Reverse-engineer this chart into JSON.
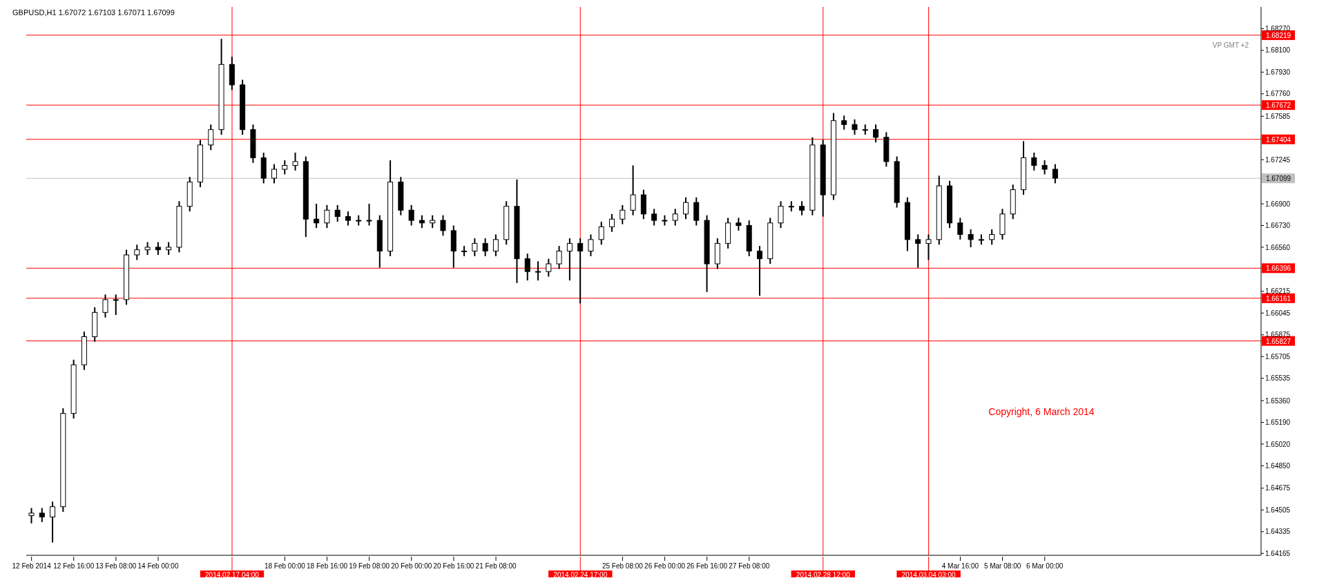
{
  "chart_data": {
    "type": "candlestick",
    "title": "GBPUSD,H1  1.67072 1.67103 1.67071 1.67099",
    "annotations": [
      "VP GMT +2",
      "Copyright, 6 March 2014"
    ],
    "categories": [
      "12 Feb 2014",
      null,
      null,
      null,
      "12 Feb 16:00",
      null,
      null,
      null,
      "13 Feb 08:00",
      null,
      null,
      null,
      "14 Feb 00:00",
      null,
      null,
      null,
      null,
      null,
      null,
      "2014.02.17 04:00",
      null,
      null,
      null,
      null,
      "18 Feb 00:00",
      null,
      null,
      null,
      "18 Feb 16:00",
      null,
      null,
      null,
      "19 Feb 08:00",
      null,
      null,
      null,
      "20 Feb 00:00",
      null,
      null,
      null,
      "20 Feb 16:00",
      null,
      null,
      null,
      "21 Feb 08:00",
      null,
      null,
      null,
      null,
      null,
      null,
      null,
      "2014.02.24 17:00",
      null,
      null,
      null,
      "25 Feb 08:00",
      null,
      null,
      null,
      "26 Feb 00:00",
      null,
      null,
      null,
      "26 Feb 16:00",
      null,
      null,
      null,
      "27 Feb 08:00",
      null,
      null,
      null,
      null,
      null,
      null,
      "2014.02.28 12:00",
      null,
      null,
      null,
      null,
      null,
      null,
      null,
      null,
      null,
      "2014.03.04 03:00",
      null,
      null,
      "4 Mar 16:00",
      null,
      null,
      null,
      "5 Mar 08:00",
      null,
      null,
      null,
      "6 Mar 00:00",
      null,
      null,
      null,
      null,
      null,
      null,
      null,
      null,
      null,
      null,
      null,
      null,
      null,
      null,
      null,
      null,
      null,
      null,
      null,
      null
    ],
    "color": "#000000",
    "ohlc": [
      [
        1.6446,
        1.6452,
        1.644,
        1.6448
      ],
      [
        1.6448,
        1.6452,
        1.6441,
        1.6445
      ],
      [
        1.6445,
        1.6457,
        1.6425,
        1.6453
      ],
      [
        1.6453,
        1.653,
        1.6449,
        1.6526
      ],
      [
        1.6526,
        1.6568,
        1.6522,
        1.6564
      ],
      [
        1.6564,
        1.659,
        1.656,
        1.6586
      ],
      [
        1.6586,
        1.6609,
        1.6582,
        1.6605
      ],
      [
        1.6605,
        1.6619,
        1.6601,
        1.6615
      ],
      [
        1.6615,
        1.6619,
        1.6603,
        1.6615
      ],
      [
        1.6615,
        1.6654,
        1.6611,
        1.665
      ],
      [
        1.665,
        1.6658,
        1.6646,
        1.6654
      ],
      [
        1.6654,
        1.666,
        1.665,
        1.6656
      ],
      [
        1.6656,
        1.666,
        1.665,
        1.6654
      ],
      [
        1.6654,
        1.666,
        1.665,
        1.6656
      ],
      [
        1.6656,
        1.6692,
        1.6652,
        1.6688
      ],
      [
        1.6688,
        1.6711,
        1.6684,
        1.6707
      ],
      [
        1.6707,
        1.674,
        1.6703,
        1.6736
      ],
      [
        1.6736,
        1.6752,
        1.6732,
        1.6748
      ],
      [
        1.6748,
        1.6819,
        1.6744,
        1.6799
      ],
      [
        1.6799,
        1.6805,
        1.6779,
        1.6783
      ],
      [
        1.6783,
        1.6787,
        1.6744,
        1.6748
      ],
      [
        1.6748,
        1.6752,
        1.6722,
        1.6726
      ],
      [
        1.6726,
        1.673,
        1.6706,
        1.671
      ],
      [
        1.671,
        1.6721,
        1.6706,
        1.6717
      ],
      [
        1.6717,
        1.6724,
        1.6713,
        1.672
      ],
      [
        1.672,
        1.673,
        1.6716,
        1.6723
      ],
      [
        1.6723,
        1.6727,
        1.6664,
        1.6678
      ],
      [
        1.6678,
        1.669,
        1.6671,
        1.6675
      ],
      [
        1.6675,
        1.6689,
        1.6671,
        1.6685
      ],
      [
        1.6685,
        1.6689,
        1.6676,
        1.668
      ],
      [
        1.668,
        1.6684,
        1.6673,
        1.6677
      ],
      [
        1.6677,
        1.6681,
        1.6673,
        1.6677
      ],
      [
        1.6677,
        1.669,
        1.6673,
        1.6677
      ],
      [
        1.6677,
        1.6681,
        1.664,
        1.6653
      ],
      [
        1.6653,
        1.6724,
        1.6649,
        1.6707
      ],
      [
        1.6707,
        1.6711,
        1.6681,
        1.6685
      ],
      [
        1.6685,
        1.6689,
        1.6673,
        1.6677
      ],
      [
        1.6677,
        1.6681,
        1.6671,
        1.6675
      ],
      [
        1.6675,
        1.6681,
        1.6671,
        1.6677
      ],
      [
        1.6677,
        1.6681,
        1.6665,
        1.6669
      ],
      [
        1.6669,
        1.6673,
        1.664,
        1.6653
      ],
      [
        1.6653,
        1.6657,
        1.6649,
        1.6653
      ],
      [
        1.6653,
        1.6663,
        1.6649,
        1.6659
      ],
      [
        1.6659,
        1.6663,
        1.6649,
        1.6653
      ],
      [
        1.6653,
        1.6666,
        1.6649,
        1.6662
      ],
      [
        1.6662,
        1.6692,
        1.6658,
        1.6688
      ],
      [
        1.6688,
        1.6709,
        1.6628,
        1.6647
      ],
      [
        1.6647,
        1.6651,
        1.663,
        1.6637
      ],
      [
        1.6637,
        1.6645,
        1.663,
        1.6637
      ],
      [
        1.6637,
        1.6647,
        1.6633,
        1.6643
      ],
      [
        1.6643,
        1.6657,
        1.6639,
        1.6653
      ],
      [
        1.6653,
        1.6663,
        1.663,
        1.6659
      ],
      [
        1.6659,
        1.6663,
        1.6612,
        1.6653
      ],
      [
        1.6653,
        1.6666,
        1.6649,
        1.6662
      ],
      [
        1.6662,
        1.6676,
        1.6658,
        1.6672
      ],
      [
        1.6672,
        1.6682,
        1.6668,
        1.6678
      ],
      [
        1.6678,
        1.6689,
        1.6674,
        1.6685
      ],
      [
        1.6685,
        1.672,
        1.6681,
        1.6697
      ],
      [
        1.6697,
        1.6701,
        1.6678,
        1.6682
      ],
      [
        1.6682,
        1.6686,
        1.6673,
        1.6677
      ],
      [
        1.6677,
        1.6681,
        1.6673,
        1.6677
      ],
      [
        1.6677,
        1.6686,
        1.6673,
        1.6682
      ],
      [
        1.6682,
        1.6695,
        1.6678,
        1.6691
      ],
      [
        1.6691,
        1.6695,
        1.6673,
        1.6677
      ],
      [
        1.6677,
        1.6681,
        1.6621,
        1.6643
      ],
      [
        1.6643,
        1.6663,
        1.6639,
        1.6659
      ],
      [
        1.6659,
        1.6679,
        1.6655,
        1.6675
      ],
      [
        1.6675,
        1.6679,
        1.6669,
        1.6673
      ],
      [
        1.6673,
        1.6677,
        1.6649,
        1.6653
      ],
      [
        1.6653,
        1.6657,
        1.6618,
        1.6647
      ],
      [
        1.6647,
        1.6679,
        1.6643,
        1.6675
      ],
      [
        1.6675,
        1.6692,
        1.6671,
        1.6688
      ],
      [
        1.6688,
        1.6692,
        1.6684,
        1.6688
      ],
      [
        1.6688,
        1.6692,
        1.6681,
        1.6685
      ],
      [
        1.6685,
        1.6742,
        1.6681,
        1.6736
      ],
      [
        1.6736,
        1.674,
        1.668,
        1.6697
      ],
      [
        1.6697,
        1.6761,
        1.6693,
        1.6755
      ],
      [
        1.6755,
        1.6759,
        1.6748,
        1.6752
      ],
      [
        1.6752,
        1.6756,
        1.6744,
        1.6748
      ],
      [
        1.6748,
        1.6752,
        1.6744,
        1.6748
      ],
      [
        1.6748,
        1.6752,
        1.6738,
        1.6742
      ],
      [
        1.6742,
        1.6746,
        1.6719,
        1.6723
      ],
      [
        1.6723,
        1.6727,
        1.6687,
        1.6691
      ],
      [
        1.6691,
        1.6695,
        1.6653,
        1.6662
      ],
      [
        1.6662,
        1.6666,
        1.664,
        1.6659
      ],
      [
        1.6659,
        1.6666,
        1.6646,
        1.6662
      ],
      [
        1.6662,
        1.6712,
        1.6658,
        1.6704
      ],
      [
        1.6704,
        1.6708,
        1.6671,
        1.6675
      ],
      [
        1.6675,
        1.6679,
        1.6662,
        1.6666
      ],
      [
        1.6666,
        1.667,
        1.6656,
        1.6662
      ],
      [
        1.6662,
        1.6666,
        1.6658,
        1.6662
      ],
      [
        1.6662,
        1.667,
        1.6658,
        1.6666
      ],
      [
        1.6666,
        1.6686,
        1.6662,
        1.6682
      ],
      [
        1.6682,
        1.6705,
        1.6678,
        1.6701
      ],
      [
        1.6701,
        1.6739,
        1.6697,
        1.6726
      ],
      [
        1.6726,
        1.673,
        1.6716,
        1.672
      ],
      [
        1.672,
        1.6724,
        1.6713,
        1.6717
      ],
      [
        1.6717,
        1.6721,
        1.6706,
        1.671
      ],
      null,
      null,
      null,
      null,
      null,
      null,
      null,
      null,
      null,
      null,
      null,
      null,
      null,
      null,
      null,
      null,
      null,
      null,
      null
    ],
    "ylim": [
      1.6415,
      1.6844
    ],
    "yticks": [
      {
        "value": 1.6827,
        "label": "1.68270"
      },
      {
        "value": 1.681,
        "label": "1.68100"
      },
      {
        "value": 1.6793,
        "label": "1.67930"
      },
      {
        "value": 1.6776,
        "label": "1.67760"
      },
      {
        "value": 1.67585,
        "label": "1.67585"
      },
      {
        "value": 1.67245,
        "label": "1.67245"
      },
      {
        "value": 1.669,
        "label": "1.66900"
      },
      {
        "value": 1.6673,
        "label": "1.66730"
      },
      {
        "value": 1.6656,
        "label": "1.66560"
      },
      {
        "value": 1.66215,
        "label": "1.66215"
      },
      {
        "value": 1.66045,
        "label": "1.66045"
      },
      {
        "value": 1.65875,
        "label": "1.65875"
      },
      {
        "value": 1.65705,
        "label": "1.65705"
      },
      {
        "value": 1.65535,
        "label": "1.65535"
      },
      {
        "value": 1.6536,
        "label": "1.65360"
      },
      {
        "value": 1.6519,
        "label": "1.65190"
      },
      {
        "value": 1.6502,
        "label": "1.65020"
      },
      {
        "value": 1.6485,
        "label": "1.64850"
      },
      {
        "value": 1.64675,
        "label": "1.64675"
      },
      {
        "value": 1.64505,
        "label": "1.64505"
      },
      {
        "value": 1.64335,
        "label": "1.64335"
      },
      {
        "value": 1.64165,
        "label": "1.64165"
      }
    ],
    "ref_lines": [
      {
        "axis": "y",
        "value": 1.68219,
        "label": "1.68219",
        "color": "#ff0000"
      },
      {
        "axis": "y",
        "value": 1.67672,
        "label": "1.67672",
        "color": "#ff0000"
      },
      {
        "axis": "y",
        "value": 1.67404,
        "label": "1.67404",
        "color": "#ff0000"
      },
      {
        "axis": "y",
        "value": 1.67099,
        "label": "1.67099",
        "color": "#c0c0c0"
      },
      {
        "axis": "y",
        "value": 1.66396,
        "label": "1.66396",
        "color": "#ff0000"
      },
      {
        "axis": "y",
        "value": 1.66161,
        "label": "1.66161",
        "color": "#ff0000"
      },
      {
        "axis": "y",
        "value": 1.65827,
        "label": "1.65827",
        "color": "#ff0000"
      },
      {
        "axis": "x",
        "value": "2014.02.17 04:00",
        "color": "#ff0000"
      },
      {
        "axis": "x",
        "value": "2014.02.24 17:00",
        "color": "#ff0000"
      },
      {
        "axis": "x",
        "value": "2014.02.28 12:00",
        "color": "#ff0000"
      },
      {
        "axis": "x",
        "value": "2014.03.04 03:00",
        "color": "#ff0000"
      }
    ]
  }
}
